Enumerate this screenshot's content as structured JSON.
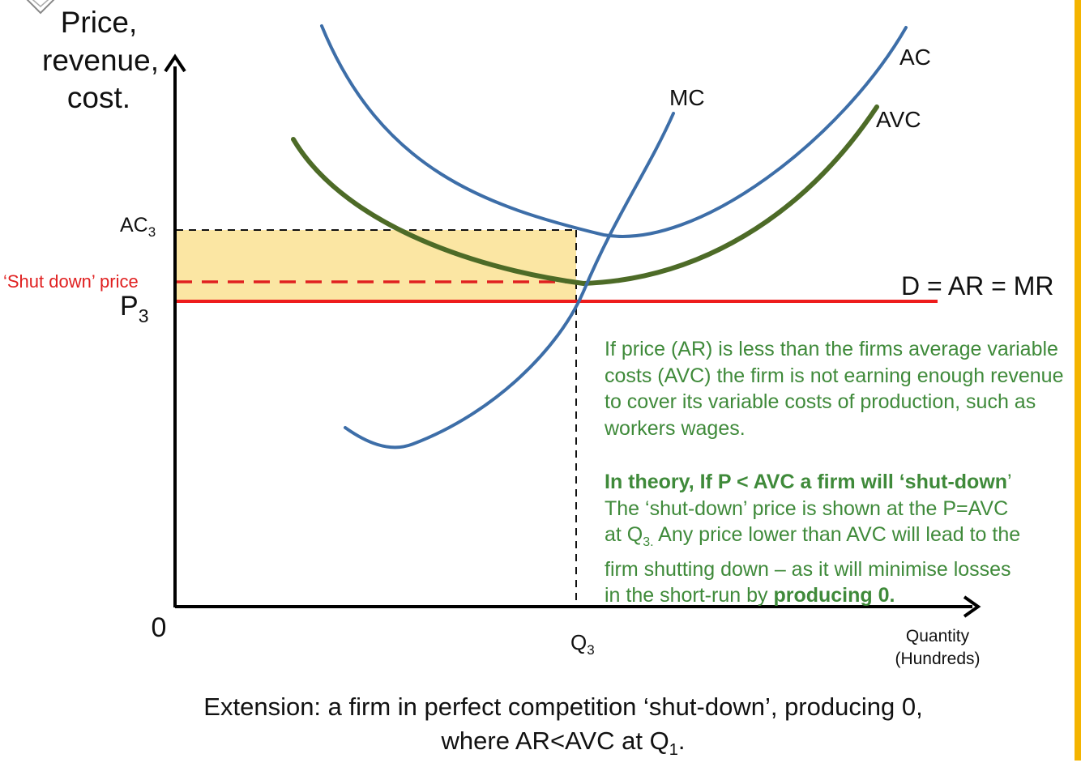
{
  "title": "",
  "axes": {
    "y_label_lines": [
      "Price,",
      "revenue,",
      "cost."
    ],
    "x_label_lines": [
      "Quantity",
      "(Hundreds)"
    ],
    "origin": "0"
  },
  "ticks": {
    "ac3_main": "AC",
    "ac3_sub": "3",
    "shutdown_price": "‘Shut down’ price",
    "p3_main": "P",
    "p3_sub": "3",
    "q3_main": "Q",
    "q3_sub": "3"
  },
  "curve_labels": {
    "mc": "MC",
    "ac": "AC",
    "avc": "AVC",
    "demand": "D = AR = MR"
  },
  "note": {
    "para1": "If price (AR) is less than the firms average variable costs (AVC) the firm is not earning enough revenue to cover its variable costs of production, such as workers wages.",
    "para2_bold": "In theory, If P < AVC a firm will ‘shut-down",
    "para2_tail": "’",
    "line3": "The ‘shut-down’ price is shown at the P=AVC",
    "line4_pre": "at Q",
    "line4_sub": "3.",
    "line4_post": " Any price lower than AVC will lead to the",
    "line5": "firm shutting down – as it will minimise losses",
    "line6_pre": "in the short-run by ",
    "line6_bold": "producing 0."
  },
  "caption": {
    "line1": "Extension: a firm in perfect competition ‘shut-down’, producing 0,",
    "line2_pre": "where AR<AVC at  Q",
    "line2_sub": "1",
    "line2_post": "."
  },
  "colors": {
    "ac_mc": "#3d6ea8",
    "avc": "#4d6b27",
    "demand": "#ee1c1c",
    "shutdown": "#e02020",
    "loss_area": "#fbe6a3",
    "note_text": "#3f8a3a",
    "edge": "#f4b400"
  },
  "chart_data": {
    "type": "diagram",
    "curves": [
      "AC",
      "AVC",
      "MC",
      "D = AR = MR"
    ],
    "reference_levels": [
      "AC3",
      "‘Shut down’ price",
      "P3"
    ],
    "reference_quantity": "Q3",
    "shaded_region": "between AC3 and P3 up to Q3"
  }
}
